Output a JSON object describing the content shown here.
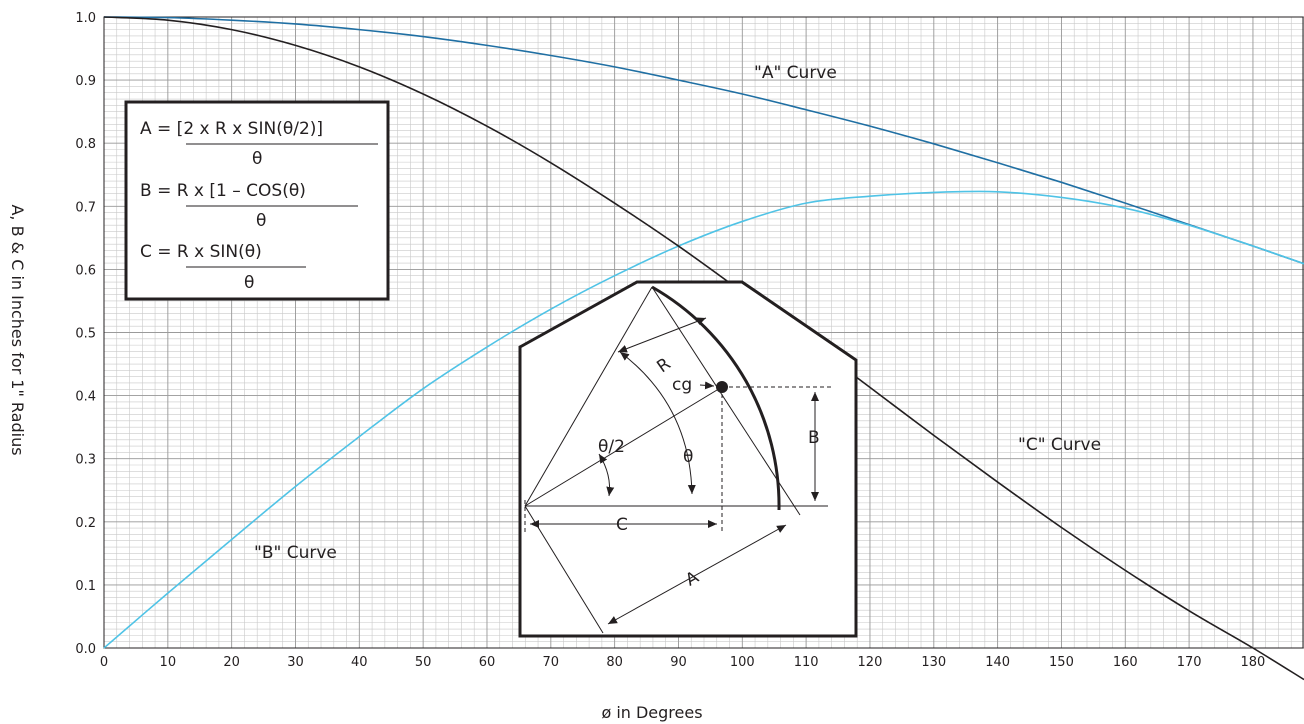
{
  "chart_data": {
    "type": "line",
    "title": "",
    "xlabel": "ø in Degrees",
    "ylabel": "A, B & C in Inches for 1\" Radius",
    "xlim": [
      0,
      188
    ],
    "ylim": [
      0,
      1.0
    ],
    "x_ticks": [
      "0",
      "10",
      "20",
      "30",
      "40",
      "50",
      "60",
      "70",
      "80",
      "90",
      "100",
      "110",
      "120",
      "130",
      "140",
      "150",
      "160",
      "170",
      "180"
    ],
    "y_ticks": [
      "0.0",
      "0.1",
      "0.2",
      "0.3",
      "0.4",
      "0.5",
      "0.6",
      "0.7",
      "0.8",
      "0.9",
      "1.0"
    ],
    "grid": true,
    "series": [
      {
        "name": "\"A\" Curve",
        "color": "#1f6fa3",
        "x": [
          0,
          10,
          20,
          30,
          40,
          50,
          60,
          70,
          80,
          90,
          100,
          110,
          120,
          130,
          140,
          150,
          160,
          170,
          180,
          188
        ],
        "values": [
          1.0,
          0.999,
          0.995,
          0.989,
          0.98,
          0.969,
          0.955,
          0.939,
          0.921,
          0.9,
          0.878,
          0.853,
          0.827,
          0.799,
          0.769,
          0.738,
          0.705,
          0.671,
          0.637,
          0.609
        ]
      },
      {
        "name": "\"B\" Curve",
        "color": "#4fc3e6",
        "x": [
          0,
          10,
          20,
          30,
          40,
          50,
          60,
          70,
          80,
          90,
          100,
          110,
          120,
          130,
          140,
          150,
          160,
          170,
          180,
          188
        ],
        "values": [
          0.0,
          0.087,
          0.172,
          0.256,
          0.335,
          0.411,
          0.477,
          0.537,
          0.59,
          0.637,
          0.676,
          0.705,
          0.716,
          0.722,
          0.723,
          0.714,
          0.697,
          0.67,
          0.637,
          0.609
        ]
      },
      {
        "name": "\"C\" Curve",
        "color": "#231f20",
        "x": [
          0,
          10,
          20,
          30,
          40,
          50,
          60,
          70,
          80,
          90,
          100,
          110,
          120,
          130,
          140,
          150,
          160,
          170,
          180,
          188
        ],
        "values": [
          1.0,
          0.995,
          0.98,
          0.955,
          0.921,
          0.878,
          0.827,
          0.769,
          0.705,
          0.637,
          0.564,
          0.489,
          0.413,
          0.337,
          0.263,
          0.191,
          0.123,
          0.059,
          0.0,
          -0.05
        ]
      }
    ],
    "annotations": {
      "a_curve": "\"A\" Curve",
      "b_curve": "\"B\" Curve",
      "c_curve": "\"C\" Curve"
    },
    "formulas": {
      "a_num": "A = [2 x R x SIN(θ/2)]",
      "a_den": "θ",
      "b_num": "B = R x [1 – COS(θ)",
      "b_den": "θ",
      "c_num": "C = R x SIN(θ)",
      "c_den": "θ"
    },
    "diagram_labels": {
      "r": "R",
      "cg": "cg",
      "theta": "θ",
      "half_theta": "θ/2",
      "a": "A",
      "b": "B",
      "c": "C"
    }
  }
}
